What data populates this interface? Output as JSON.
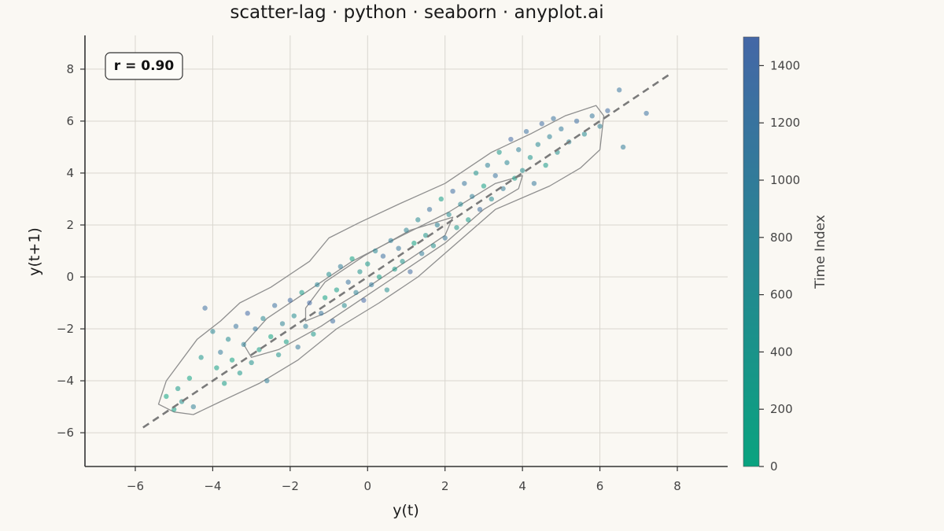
{
  "chart_data": {
    "type": "scatter",
    "title": "scatter-lag · python · seaborn · anyplot.ai",
    "xlabel": "y(t)",
    "ylabel": "y(t+1)",
    "xlim": [
      -7.3,
      9.3
    ],
    "ylim": [
      -7.3,
      9.3
    ],
    "xticks": [
      -6,
      -4,
      -2,
      0,
      2,
      4,
      6,
      8
    ],
    "yticks": [
      -6,
      -4,
      -2,
      0,
      2,
      4,
      6,
      8
    ],
    "xtick_labels": [
      "−6",
      "−4",
      "−2",
      "0",
      "2",
      "4",
      "6",
      "8"
    ],
    "ytick_labels": [
      "−6",
      "−4",
      "−2",
      "0",
      "2",
      "4",
      "6",
      "8"
    ],
    "grid": true,
    "annotation": "r = 0.90",
    "reference_line": {
      "style": "dashed",
      "from": [
        -5.8,
        -5.8
      ],
      "to": [
        7.8,
        7.8
      ],
      "color": "#7a7a7a"
    },
    "colorbar": {
      "label": "Time Index",
      "range": [
        0,
        1500
      ],
      "ticks": [
        0,
        200,
        400,
        600,
        800,
        1000,
        1200,
        1400
      ],
      "tick_labels": [
        "0",
        "200",
        "400",
        "600",
        "800",
        "1000",
        "1200",
        "1400"
      ],
      "color_low": "#0aa37f",
      "color_high": "#4467a6"
    },
    "density_contours": [
      [
        [
          -5.4,
          -4.9
        ],
        [
          -5.2,
          -4.0
        ],
        [
          -4.4,
          -2.4
        ],
        [
          -3.8,
          -1.7
        ],
        [
          -3.3,
          -1.0
        ],
        [
          -2.5,
          -0.4
        ],
        [
          -1.5,
          0.6
        ],
        [
          -1.0,
          1.5
        ],
        [
          -0.2,
          2.1
        ],
        [
          0.8,
          2.8
        ],
        [
          2.0,
          3.6
        ],
        [
          3.2,
          4.8
        ],
        [
          4.2,
          5.5
        ],
        [
          5.1,
          6.2
        ],
        [
          5.9,
          6.6
        ],
        [
          6.1,
          6.2
        ],
        [
          6.0,
          4.9
        ],
        [
          5.5,
          4.2
        ],
        [
          4.7,
          3.5
        ],
        [
          3.3,
          2.6
        ],
        [
          2.3,
          1.3
        ],
        [
          1.3,
          0.0
        ],
        [
          0.3,
          -1.0
        ],
        [
          -0.8,
          -2.0
        ],
        [
          -1.8,
          -3.2
        ],
        [
          -2.8,
          -4.1
        ],
        [
          -3.8,
          -4.8
        ],
        [
          -4.5,
          -5.3
        ],
        [
          -5.0,
          -5.2
        ],
        [
          -5.4,
          -4.9
        ]
      ],
      [
        [
          -3.2,
          -2.6
        ],
        [
          -2.6,
          -1.6
        ],
        [
          -1.6,
          -0.6
        ],
        [
          -0.4,
          0.6
        ],
        [
          0.9,
          1.6
        ],
        [
          2.1,
          2.5
        ],
        [
          3.3,
          3.6
        ],
        [
          4.0,
          3.9
        ],
        [
          3.9,
          3.4
        ],
        [
          3.0,
          2.6
        ],
        [
          2.0,
          1.3
        ],
        [
          0.9,
          0.2
        ],
        [
          -0.2,
          -0.9
        ],
        [
          -1.2,
          -1.9
        ],
        [
          -2.3,
          -2.8
        ],
        [
          -3.0,
          -3.1
        ],
        [
          -3.2,
          -2.6
        ]
      ],
      [
        [
          -1.6,
          -1.2
        ],
        [
          -1.1,
          -0.2
        ],
        [
          -0.1,
          0.8
        ],
        [
          1.1,
          1.8
        ],
        [
          2.2,
          2.3
        ],
        [
          2.0,
          1.6
        ],
        [
          1.1,
          0.7
        ],
        [
          0.0,
          -0.4
        ],
        [
          -1.1,
          -1.4
        ],
        [
          -1.6,
          -1.7
        ],
        [
          -1.6,
          -1.2
        ]
      ]
    ],
    "series": [
      {
        "sample_description": "1500 lag-pair points (y(t), y(t+1)) coloured by time index; approximated",
        "values": [
          [
            -5.2,
            -4.6,
            20
          ],
          [
            -5.0,
            -5.1,
            140
          ],
          [
            -4.9,
            -4.3,
            300
          ],
          [
            -4.8,
            -4.8,
            520
          ],
          [
            -4.6,
            -3.9,
            60
          ],
          [
            -4.5,
            -5.0,
            900
          ],
          [
            -4.3,
            -3.1,
            410
          ],
          [
            -4.2,
            -1.2,
            1300
          ],
          [
            -4.0,
            -2.1,
            760
          ],
          [
            -3.9,
            -3.5,
            180
          ],
          [
            -3.8,
            -2.9,
            1020
          ],
          [
            -3.7,
            -4.1,
            240
          ],
          [
            -3.6,
            -2.4,
            640
          ],
          [
            -3.5,
            -3.2,
            80
          ],
          [
            -3.4,
            -1.9,
            1180
          ],
          [
            -3.3,
            -3.7,
            360
          ],
          [
            -3.2,
            -2.6,
            880
          ],
          [
            -3.1,
            -1.4,
            1450
          ],
          [
            -3.0,
            -3.3,
            500
          ],
          [
            -2.9,
            -2.0,
            1100
          ],
          [
            -2.8,
            -2.8,
            200
          ],
          [
            -2.7,
            -1.6,
            700
          ],
          [
            -2.6,
            -4.0,
            960
          ],
          [
            -2.5,
            -2.3,
            40
          ],
          [
            -2.4,
            -1.1,
            1250
          ],
          [
            -2.3,
            -3.0,
            430
          ],
          [
            -2.2,
            -1.8,
            820
          ],
          [
            -2.1,
            -2.5,
            150
          ],
          [
            -2.0,
            -0.9,
            1380
          ],
          [
            -1.9,
            -1.5,
            600
          ],
          [
            -1.8,
            -2.7,
            1060
          ],
          [
            -1.7,
            -0.6,
            260
          ],
          [
            -1.6,
            -1.9,
            940
          ],
          [
            -1.5,
            -1.0,
            1420
          ],
          [
            -1.4,
            -2.2,
            340
          ],
          [
            -1.3,
            -0.3,
            780
          ],
          [
            -1.2,
            -1.4,
            1160
          ],
          [
            -1.1,
            -0.8,
            90
          ],
          [
            -1.0,
            0.1,
            560
          ],
          [
            -0.9,
            -1.7,
            1320
          ],
          [
            -0.8,
            -0.5,
            230
          ],
          [
            -0.7,
            0.4,
            980
          ],
          [
            -0.6,
            -1.1,
            660
          ],
          [
            -0.5,
            -0.2,
            1210
          ],
          [
            -0.4,
            0.7,
            110
          ],
          [
            -0.3,
            -0.6,
            860
          ],
          [
            -0.2,
            0.2,
            470
          ],
          [
            -0.1,
            -0.9,
            1480
          ],
          [
            0.0,
            0.5,
            320
          ],
          [
            0.1,
            -0.3,
            1040
          ],
          [
            0.2,
            1.0,
            740
          ],
          [
            0.3,
            0.0,
            170
          ],
          [
            0.4,
            0.8,
            1280
          ],
          [
            0.5,
            -0.5,
            580
          ],
          [
            0.6,
            1.4,
            920
          ],
          [
            0.7,
            0.3,
            280
          ],
          [
            0.8,
            1.1,
            1120
          ],
          [
            0.9,
            0.6,
            450
          ],
          [
            1.0,
            1.8,
            800
          ],
          [
            1.1,
            0.2,
            1400
          ],
          [
            1.2,
            1.3,
            130
          ],
          [
            1.3,
            2.2,
            680
          ],
          [
            1.4,
            0.9,
            1000
          ],
          [
            1.5,
            1.6,
            380
          ],
          [
            1.6,
            2.6,
            1240
          ],
          [
            1.7,
            1.2,
            540
          ],
          [
            1.8,
            2.0,
            840
          ],
          [
            1.9,
            3.0,
            210
          ],
          [
            2.0,
            1.5,
            1090
          ],
          [
            2.1,
            2.4,
            620
          ],
          [
            2.2,
            3.3,
            1350
          ],
          [
            2.3,
            1.9,
            400
          ],
          [
            2.4,
            2.8,
            720
          ],
          [
            2.5,
            3.6,
            1150
          ],
          [
            2.6,
            2.2,
            270
          ],
          [
            2.7,
            3.1,
            960
          ],
          [
            2.8,
            4.0,
            500
          ],
          [
            2.9,
            2.6,
            1300
          ],
          [
            3.0,
            3.5,
            160
          ],
          [
            3.1,
            4.3,
            880
          ],
          [
            3.2,
            3.0,
            630
          ],
          [
            3.3,
            3.9,
            1190
          ],
          [
            3.4,
            4.8,
            350
          ],
          [
            3.5,
            3.4,
            1010
          ],
          [
            3.6,
            4.4,
            760
          ],
          [
            3.7,
            5.3,
            1440
          ],
          [
            3.8,
            3.8,
            220
          ],
          [
            3.9,
            4.9,
            940
          ],
          [
            4.0,
            4.1,
            580
          ],
          [
            4.1,
            5.6,
            1260
          ],
          [
            4.2,
            4.6,
            420
          ],
          [
            4.3,
            3.6,
            1080
          ],
          [
            4.4,
            5.1,
            700
          ],
          [
            4.5,
            5.9,
            1360
          ],
          [
            4.6,
            4.3,
            300
          ],
          [
            4.7,
            5.4,
            860
          ],
          [
            4.8,
            6.1,
            1200
          ],
          [
            4.9,
            4.8,
            520
          ],
          [
            5.0,
            5.7,
            1020
          ],
          [
            5.2,
            5.2,
            780
          ],
          [
            5.4,
            6.0,
            1320
          ],
          [
            5.6,
            5.5,
            640
          ],
          [
            5.8,
            6.2,
            1100
          ],
          [
            6.0,
            5.8,
            900
          ],
          [
            6.2,
            6.4,
            1400
          ],
          [
            6.5,
            7.2,
            1180
          ],
          [
            6.6,
            5.0,
            1000
          ],
          [
            7.2,
            6.3,
            1250
          ]
        ]
      }
    ]
  }
}
